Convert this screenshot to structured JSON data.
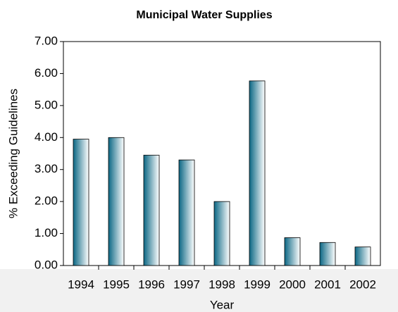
{
  "chart_data": {
    "type": "bar",
    "title": "Municipal Water Supplies",
    "y_label": "% Exceeding Guidelines",
    "x_label": "Year",
    "categories": [
      "1994",
      "1995",
      "1996",
      "1997",
      "1998",
      "1999",
      "2000",
      "2001",
      "2002"
    ],
    "values": [
      3.95,
      4.0,
      3.45,
      3.3,
      2.0,
      5.77,
      0.87,
      0.72,
      0.58
    ],
    "color": "#0b6784",
    "ylim": [
      0,
      7
    ],
    "yticks": [
      {
        "value": 0,
        "label": "0.00"
      },
      {
        "value": 1,
        "label": "1.00"
      },
      {
        "value": 2,
        "label": "2.00"
      },
      {
        "value": 3,
        "label": "3.00"
      },
      {
        "value": 4,
        "label": "4.00"
      },
      {
        "value": 5,
        "label": "5.00"
      },
      {
        "value": 6,
        "label": "6.00"
      },
      {
        "value": 7,
        "label": "7.00"
      }
    ],
    "grid": false
  }
}
